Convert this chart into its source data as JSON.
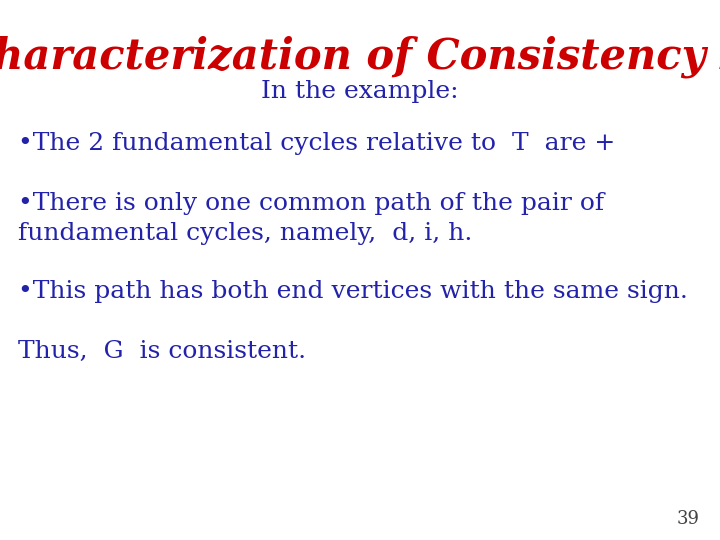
{
  "title": "Characterization of Consistency II",
  "title_color": "#cc0000",
  "title_fontsize": 30,
  "subtitle": "In the example:",
  "subtitle_color": "#2222aa",
  "subtitle_fontsize": 18,
  "bullet1": "•The 2 fundamental cycles relative to  T  are +",
  "bullet2a": "•There is only one common path of the pair of",
  "bullet2b": "fundamental cycles, namely,  d, i, h.",
  "bullet3": "•This path has both end vertices with the same sign.",
  "conclusion": "Thus,  G  is consistent.",
  "text_color": "#2222aa",
  "text_fontsize": 18,
  "page_number": "39",
  "page_number_color": "#444444",
  "page_number_fontsize": 13,
  "background_color": "#ffffff"
}
